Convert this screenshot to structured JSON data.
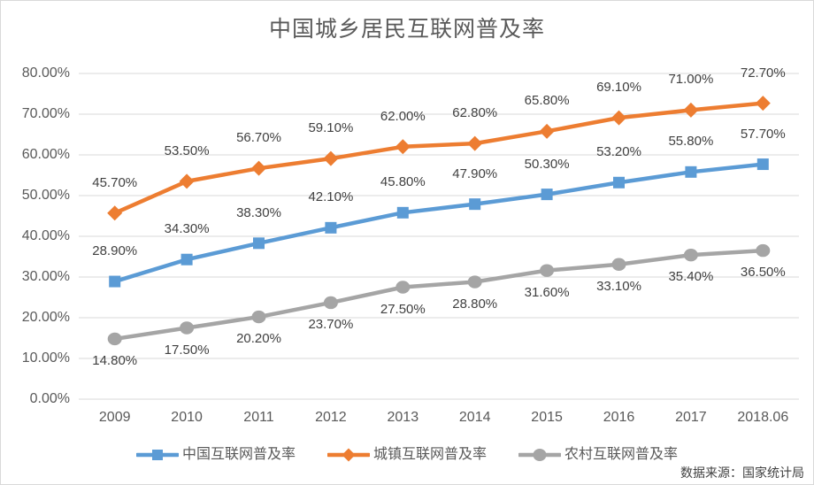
{
  "title": "中国城乡居民互联网普及率",
  "source_note": "数据来源：国家统计局",
  "colors": {
    "blue": "#5B9BD5",
    "orange": "#ED7D31",
    "gray": "#A5A5A5",
    "grid": "#D9D9D9",
    "axis_text": "#595959",
    "label_text": "#404040",
    "title_text": "#595959",
    "border": "#D9D9D9"
  },
  "chart_data": {
    "type": "line",
    "title": "中国城乡居民互联网普及率",
    "categories": [
      "2009",
      "2010",
      "2011",
      "2012",
      "2013",
      "2014",
      "2015",
      "2016",
      "2017",
      "2018.06"
    ],
    "y_ticks": [
      "0.00%",
      "10.00%",
      "20.00%",
      "30.00%",
      "40.00%",
      "50.00%",
      "60.00%",
      "70.00%",
      "80.00%"
    ],
    "ylim": [
      0,
      80
    ],
    "grid": "horizontal",
    "legend_position": "bottom",
    "series": [
      {
        "id": "china",
        "name": "中国互联网普及率",
        "marker": "square",
        "color_key": "blue",
        "label_side": "above",
        "values": [
          28.9,
          34.3,
          38.3,
          42.1,
          45.8,
          47.9,
          50.3,
          53.2,
          55.8,
          57.7
        ],
        "labels": [
          "28.90%",
          "34.30%",
          "38.30%",
          "42.10%",
          "45.80%",
          "47.90%",
          "50.30%",
          "53.20%",
          "55.80%",
          "57.70%"
        ]
      },
      {
        "id": "urban",
        "name": "城镇互联网普及率",
        "marker": "diamond",
        "color_key": "orange",
        "label_side": "above",
        "values": [
          45.7,
          53.5,
          56.7,
          59.1,
          62.0,
          62.8,
          65.8,
          69.1,
          71.0,
          72.7
        ],
        "labels": [
          "45.70%",
          "53.50%",
          "56.70%",
          "59.10%",
          "62.00%",
          "62.80%",
          "65.80%",
          "69.10%",
          "71.00%",
          "72.70%"
        ]
      },
      {
        "id": "rural",
        "name": "农村互联网普及率",
        "marker": "circle",
        "color_key": "gray",
        "label_side": "below",
        "values": [
          14.8,
          17.5,
          20.2,
          23.7,
          27.5,
          28.8,
          31.6,
          33.1,
          35.4,
          36.5
        ],
        "labels": [
          "14.80%",
          "17.50%",
          "20.20%",
          "23.70%",
          "27.50%",
          "28.80%",
          "31.60%",
          "33.10%",
          "35.40%",
          "36.50%"
        ]
      }
    ]
  }
}
